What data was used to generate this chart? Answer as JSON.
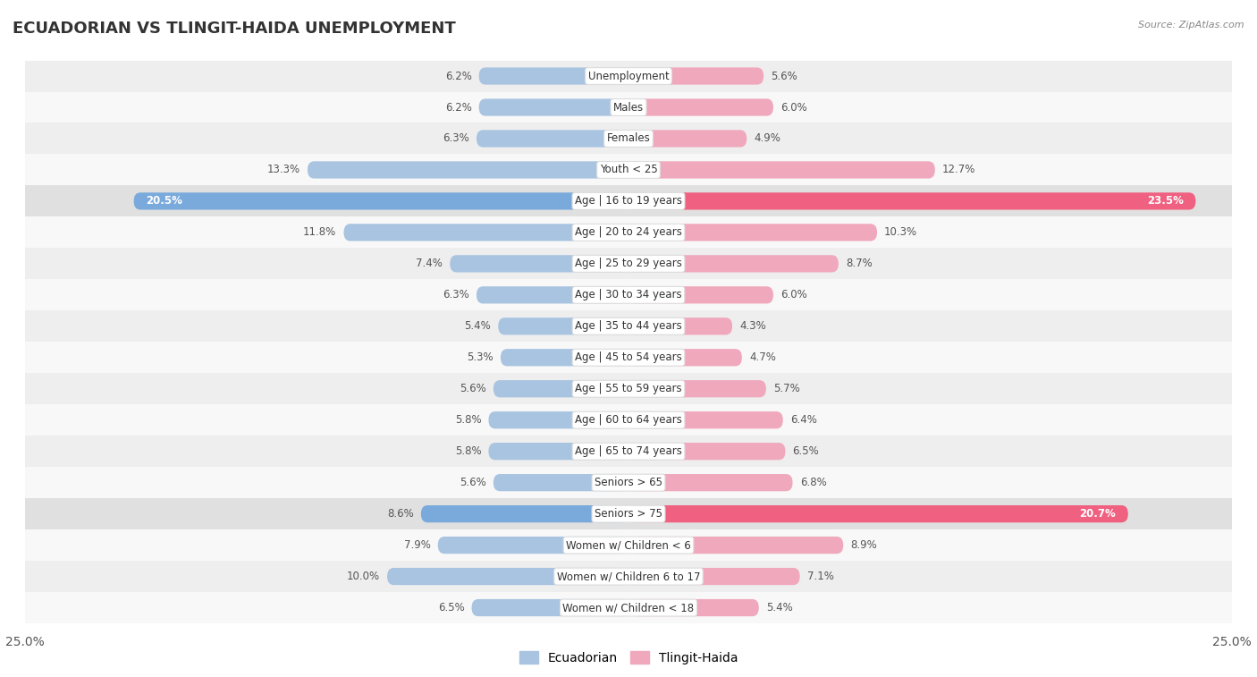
{
  "title": "ECUADORIAN VS TLINGIT-HAIDA UNEMPLOYMENT",
  "source": "Source: ZipAtlas.com",
  "categories": [
    "Unemployment",
    "Males",
    "Females",
    "Youth < 25",
    "Age | 16 to 19 years",
    "Age | 20 to 24 years",
    "Age | 25 to 29 years",
    "Age | 30 to 34 years",
    "Age | 35 to 44 years",
    "Age | 45 to 54 years",
    "Age | 55 to 59 years",
    "Age | 60 to 64 years",
    "Age | 65 to 74 years",
    "Seniors > 65",
    "Seniors > 75",
    "Women w/ Children < 6",
    "Women w/ Children 6 to 17",
    "Women w/ Children < 18"
  ],
  "ecuadorian": [
    6.2,
    6.2,
    6.3,
    13.3,
    20.5,
    11.8,
    7.4,
    6.3,
    5.4,
    5.3,
    5.6,
    5.8,
    5.8,
    5.6,
    8.6,
    7.9,
    10.0,
    6.5
  ],
  "tlingit_haida": [
    5.6,
    6.0,
    4.9,
    12.7,
    23.5,
    10.3,
    8.7,
    6.0,
    4.3,
    4.7,
    5.7,
    6.4,
    6.5,
    6.8,
    20.7,
    8.9,
    7.1,
    5.4
  ],
  "ecuadorian_color_normal": "#a8c4e0",
  "tlingit_haida_color_normal": "#f0a8bc",
  "ecuadorian_color_highlight": "#7aaadc",
  "tlingit_haida_color_highlight": "#f06080",
  "row_bg_light": "#eeeeee",
  "row_bg_white": "#f8f8f8",
  "row_bg_highlight": "#e0e0e0",
  "x_max": 25.0,
  "legend_ecuadorian": "Ecuadorian",
  "legend_tlingit": "Tlingit-Haida",
  "highlight_indices": [
    4,
    14
  ]
}
